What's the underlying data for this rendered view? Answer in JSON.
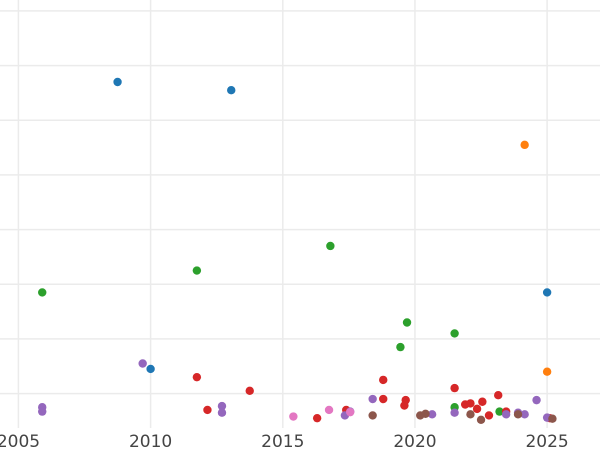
{
  "chart_data": {
    "type": "scatter",
    "title": "",
    "xlabel": "",
    "ylabel": "",
    "xlim": [
      2004.0,
      2027.0
    ],
    "ylim": [
      -0.13,
      7.7
    ],
    "x_ticks": [
      2005,
      2010,
      2015,
      2020,
      2025
    ],
    "x_tick_labels": [
      "2005",
      "2010",
      "2015",
      "2020",
      "2025"
    ],
    "y_gridlines": [
      0.5,
      1.5,
      2.5,
      3.5,
      4.5,
      5.5,
      6.5,
      7.5
    ],
    "grid": true,
    "legend": "none",
    "series": [
      {
        "color": "#1f77b4",
        "points": [
          [
            2008.75,
            6.2
          ],
          [
            2013.05,
            6.05
          ],
          [
            2010.0,
            0.95
          ],
          [
            2025.0,
            2.35
          ]
        ]
      },
      {
        "color": "#ff7f0e",
        "points": [
          [
            2024.15,
            5.05
          ],
          [
            2025.0,
            0.9
          ]
        ]
      },
      {
        "color": "#2ca02c",
        "points": [
          [
            2005.9,
            2.35
          ],
          [
            2011.75,
            2.75
          ],
          [
            2016.8,
            3.2
          ],
          [
            2019.7,
            1.8
          ],
          [
            2019.45,
            1.35
          ],
          [
            2021.5,
            1.6
          ],
          [
            2021.5,
            0.25
          ],
          [
            2023.2,
            0.17
          ]
        ]
      },
      {
        "color": "#d62728",
        "points": [
          [
            2011.75,
            0.8
          ],
          [
            2012.15,
            0.2
          ],
          [
            2013.75,
            0.55
          ],
          [
            2016.3,
            0.05
          ],
          [
            2017.4,
            0.2
          ],
          [
            2018.8,
            0.75
          ],
          [
            2018.8,
            0.4
          ],
          [
            2019.65,
            0.38
          ],
          [
            2019.6,
            0.28
          ],
          [
            2021.5,
            0.6
          ],
          [
            2021.9,
            0.3
          ],
          [
            2022.1,
            0.32
          ],
          [
            2022.35,
            0.22
          ],
          [
            2022.55,
            0.35
          ],
          [
            2022.8,
            0.1
          ],
          [
            2023.15,
            0.47
          ],
          [
            2023.45,
            0.17
          ],
          [
            2025.1,
            0.05
          ]
        ]
      },
      {
        "color": "#9467bd",
        "points": [
          [
            2005.9,
            0.25
          ],
          [
            2005.9,
            0.17
          ],
          [
            2009.7,
            1.05
          ],
          [
            2012.7,
            0.27
          ],
          [
            2012.7,
            0.15
          ],
          [
            2017.35,
            0.1
          ],
          [
            2017.55,
            0.17
          ],
          [
            2018.4,
            0.4
          ],
          [
            2020.65,
            0.12
          ],
          [
            2021.5,
            0.15
          ],
          [
            2023.45,
            0.12
          ],
          [
            2023.9,
            0.15
          ],
          [
            2024.15,
            0.12
          ],
          [
            2024.6,
            0.38
          ],
          [
            2025.0,
            0.06
          ]
        ]
      },
      {
        "color": "#8c564b",
        "points": [
          [
            2018.4,
            0.1
          ],
          [
            2020.2,
            0.1
          ],
          [
            2020.4,
            0.13
          ],
          [
            2022.1,
            0.12
          ],
          [
            2022.5,
            0.02
          ],
          [
            2023.9,
            0.12
          ],
          [
            2025.2,
            0.04
          ]
        ]
      },
      {
        "color": "#e377c2",
        "points": [
          [
            2015.4,
            0.08
          ],
          [
            2016.75,
            0.2
          ],
          [
            2017.55,
            0.16
          ]
        ]
      }
    ]
  }
}
